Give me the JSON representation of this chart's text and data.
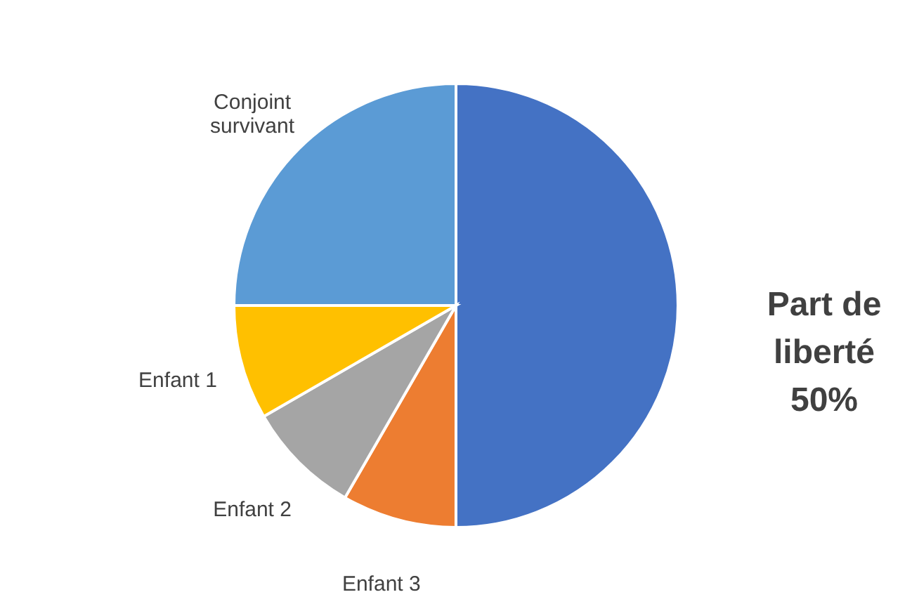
{
  "chart_data": {
    "type": "pie",
    "categories": [
      "Part de liberté",
      "Enfant 3",
      "Enfant 2",
      "Enfant 1",
      "Conjoint survivant"
    ],
    "values": [
      50,
      8.33,
      8.33,
      8.33,
      25
    ],
    "colors": [
      "#4472c4",
      "#ed7d31",
      "#a5a5a5",
      "#ffc000",
      "#5b9bd5"
    ],
    "value_labels": [
      "50%",
      null,
      null,
      null,
      null
    ]
  }
}
